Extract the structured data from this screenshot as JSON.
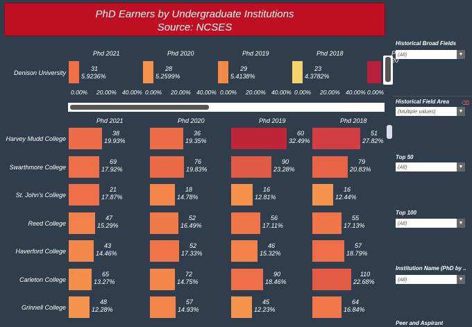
{
  "title": {
    "line1": "PhD Earners by Undergraduate Institutions",
    "line2": "Source: NCSES"
  },
  "top": {
    "columns": [
      "Phd 2021",
      "Phd 2020",
      "Phd 2019",
      "Phd 2018",
      "Phd 20"
    ],
    "row_label": "Denison University",
    "cells": [
      {
        "count": "31",
        "pct": "5.9236%",
        "color": "#ef6f45"
      },
      {
        "count": "28",
        "pct": "5.2599%",
        "color": "#f6934a"
      },
      {
        "count": "29",
        "pct": "5.4138%",
        "color": "#f48a46"
      },
      {
        "count": "23",
        "pct": "4.3782%",
        "color": "#f4d36a"
      },
      {
        "count": "",
        "pct": "",
        "color": "#b81f3a"
      }
    ],
    "axis_ticks": [
      "0.00%",
      "20.00%",
      "40.00%"
    ],
    "axis_ticks_last": [
      "0.00%",
      "20.00%",
      "40.00%",
      "0.00%"
    ]
  },
  "lower": {
    "columns": [
      "Phd 2021",
      "Phd 2020",
      "Phd 2019",
      "Phd 2018"
    ],
    "rows": [
      {
        "name": "Harvey Mudd College",
        "cells": [
          {
            "count": "38",
            "pct": "19.93%",
            "w": 0.6,
            "color": "#ec6c48"
          },
          {
            "count": "36",
            "pct": "19.35%",
            "w": 0.6,
            "color": "#ec6c48"
          },
          {
            "count": "60",
            "pct": "32.49%",
            "w": 1.0,
            "color": "#c0263a"
          },
          {
            "count": "51",
            "pct": "27.82%",
            "w": 0.86,
            "color": "#d23e42"
          }
        ]
      },
      {
        "name": "Swarthmore College",
        "cells": [
          {
            "count": "69",
            "pct": "17.92%",
            "w": 0.55,
            "color": "#ef7048"
          },
          {
            "count": "76",
            "pct": "19.83%",
            "w": 0.61,
            "color": "#ec6a47"
          },
          {
            "count": "90",
            "pct": "23.28%",
            "w": 0.72,
            "color": "#e05a45"
          },
          {
            "count": "79",
            "pct": "20.83%",
            "w": 0.64,
            "color": "#e96446"
          }
        ]
      },
      {
        "name": "St. John's College",
        "cells": [
          {
            "count": "21",
            "pct": "17.87%",
            "w": 0.55,
            "color": "#ef7048"
          },
          {
            "count": "18",
            "pct": "14.78%",
            "w": 0.45,
            "color": "#f4864a"
          },
          {
            "count": "16",
            "pct": "12.81%",
            "w": 0.39,
            "color": "#f6914c"
          },
          {
            "count": "16",
            "pct": "12.44%",
            "w": 0.38,
            "color": "#f6934c"
          }
        ]
      },
      {
        "name": "Reed College",
        "cells": [
          {
            "count": "47",
            "pct": "15.29%",
            "w": 0.47,
            "color": "#f3824a"
          },
          {
            "count": "52",
            "pct": "16.49%",
            "w": 0.51,
            "color": "#f17a49"
          },
          {
            "count": "56",
            "pct": "17.11%",
            "w": 0.53,
            "color": "#f07549"
          },
          {
            "count": "55",
            "pct": "17.13%",
            "w": 0.53,
            "color": "#f07549"
          }
        ]
      },
      {
        "name": "Haverford College",
        "cells": [
          {
            "count": "43",
            "pct": "14.46%",
            "w": 0.45,
            "color": "#f4874a"
          },
          {
            "count": "52",
            "pct": "17.33%",
            "w": 0.53,
            "color": "#f07449"
          },
          {
            "count": "46",
            "pct": "15.32%",
            "w": 0.47,
            "color": "#f3824a"
          },
          {
            "count": "57",
            "pct": "18.79%",
            "w": 0.58,
            "color": "#ee6e48"
          }
        ]
      },
      {
        "name": "Carleton College",
        "cells": [
          {
            "count": "65",
            "pct": "13.27%",
            "w": 0.41,
            "color": "#f58e4b"
          },
          {
            "count": "72",
            "pct": "14.75%",
            "w": 0.45,
            "color": "#f4864a"
          },
          {
            "count": "90",
            "pct": "18.46%",
            "w": 0.57,
            "color": "#ee6f48"
          },
          {
            "count": "110",
            "pct": "22.68%",
            "w": 0.7,
            "color": "#e25c45"
          }
        ]
      },
      {
        "name": "Grinnell College",
        "cells": [
          {
            "count": "48",
            "pct": "12.28%",
            "w": 0.38,
            "color": "#f6934c"
          },
          {
            "count": "57",
            "pct": "14.93%",
            "w": 0.46,
            "color": "#f4854a"
          },
          {
            "count": "45",
            "pct": "12.23%",
            "w": 0.38,
            "color": "#f6934c"
          },
          {
            "count": "64",
            "pct": "16.84%",
            "w": 0.52,
            "color": "#f17849"
          }
        ]
      }
    ]
  },
  "filters": {
    "broad_fields": {
      "title": "Historical Broad Fields",
      "value": "(All)"
    },
    "field_area": {
      "title": "Historical Field Area",
      "value": "(Multiple values)"
    },
    "top50": {
      "title": "Top 50",
      "value": "(All)"
    },
    "top100": {
      "title": "Top 100",
      "value": "(All)"
    },
    "institution": {
      "title": "Institution Name (PhD by ..",
      "value": "(All)"
    },
    "peer": {
      "title": "Peer and Aspirant"
    }
  }
}
